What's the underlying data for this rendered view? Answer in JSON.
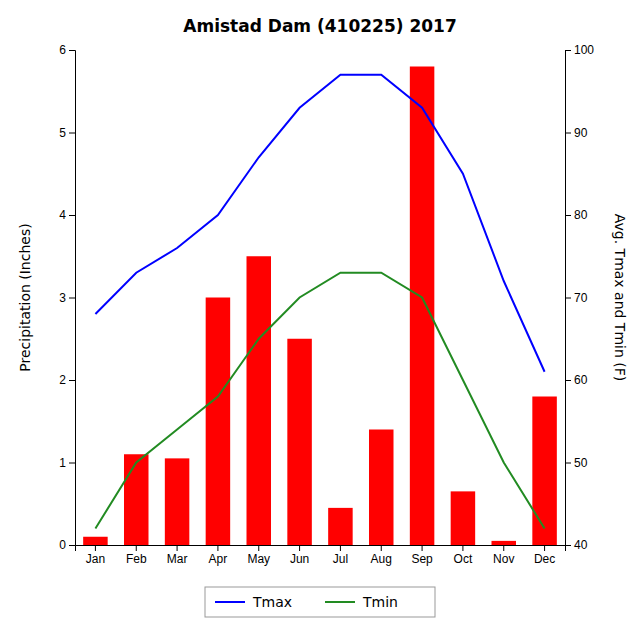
{
  "chart_data": {
    "type": "bar",
    "title": "Amistad Dam (410225) 2017",
    "categories": [
      "Jan",
      "Feb",
      "Mar",
      "Apr",
      "May",
      "Jun",
      "Jul",
      "Aug",
      "Sep",
      "Oct",
      "Nov",
      "Dec"
    ],
    "series": [
      {
        "type": "bar",
        "color": "#FF0000",
        "values": [
          0.1,
          1.1,
          1.05,
          3.0,
          3.5,
          2.5,
          0.45,
          1.4,
          5.8,
          0.65,
          0.05,
          1.8
        ]
      },
      {
        "name": "Tmax",
        "type": "line",
        "axis": "y2",
        "color": "#0000FF",
        "values": [
          68,
          73,
          76,
          80,
          87,
          93,
          97,
          97,
          93,
          85,
          72,
          61
        ]
      },
      {
        "name": "Tmin",
        "type": "line",
        "axis": "y2",
        "color": "#228B22",
        "values": [
          42,
          50,
          54,
          58,
          65,
          70,
          73,
          73,
          70,
          60,
          50,
          42
        ]
      }
    ],
    "ylabel": "Precipitation (Inches)",
    "y2label": "Avg. Tmax and Tmin (F)",
    "ylim": [
      0,
      6
    ],
    "yticks": [
      0,
      1,
      2,
      3,
      4,
      5,
      6
    ],
    "y2lim": [
      40,
      100
    ],
    "y2ticks": [
      40,
      50,
      60,
      70,
      80,
      90,
      100
    ],
    "legend": "bottom",
    "grid": false
  }
}
